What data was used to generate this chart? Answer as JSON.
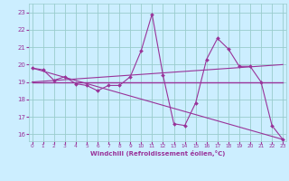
{
  "xlabel": "Windchill (Refroidissement éolien,°C)",
  "background_color": "#cceeff",
  "grid_color": "#99cccc",
  "line_color": "#993399",
  "text_color": "#993399",
  "x_ticks": [
    0,
    1,
    2,
    3,
    4,
    5,
    6,
    7,
    8,
    9,
    10,
    11,
    12,
    13,
    14,
    15,
    16,
    17,
    18,
    19,
    20,
    21,
    22,
    23
  ],
  "y_ticks": [
    16,
    17,
    18,
    19,
    20,
    21,
    22,
    23
  ],
  "xlim": [
    -0.3,
    23.3
  ],
  "ylim": [
    15.6,
    23.5
  ],
  "series_main": {
    "x": [
      0,
      1,
      2,
      3,
      4,
      5,
      6,
      7,
      8,
      9,
      10,
      11,
      12,
      13,
      14,
      15,
      16,
      17,
      18,
      19,
      20,
      21,
      22,
      23
    ],
    "y": [
      19.8,
      19.7,
      19.1,
      19.3,
      18.9,
      18.8,
      18.5,
      18.8,
      18.8,
      19.3,
      20.8,
      22.9,
      19.4,
      16.6,
      16.5,
      17.8,
      20.3,
      21.5,
      20.9,
      19.9,
      19.9,
      19.0,
      16.5,
      15.7
    ]
  },
  "series_diag": {
    "x": [
      0,
      23
    ],
    "y": [
      19.8,
      15.7
    ]
  },
  "series_rising": {
    "x": [
      0,
      23
    ],
    "y": [
      19.0,
      20.0
    ]
  },
  "series_flat": {
    "x": [
      0,
      23
    ],
    "y": [
      19.0,
      19.0
    ]
  }
}
